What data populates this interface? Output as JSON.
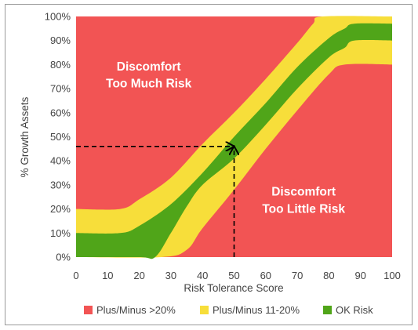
{
  "chart_data": {
    "type": "area",
    "title": "",
    "xlabel": "Risk Tolerance Score",
    "ylabel": "% Growth Assets",
    "xlim": [
      0,
      100
    ],
    "ylim": [
      0,
      100
    ],
    "x_ticks": [
      "0",
      "10",
      "20",
      "30",
      "40",
      "50",
      "60",
      "70",
      "80",
      "90",
      "100"
    ],
    "y_ticks": [
      "0%",
      "10%",
      "20%",
      "30%",
      "40%",
      "50%",
      "60%",
      "70%",
      "80%",
      "90%",
      "100%"
    ],
    "grid": false,
    "legend_position": "bottom",
    "background_zone": {
      "name": "Plus/Minus >20%",
      "color": "#f25454"
    },
    "bands": [
      {
        "name": "Plus/Minus 11-20%",
        "color": "#f7de3a",
        "upper": [
          [
            0,
            20
          ],
          [
            14,
            20
          ],
          [
            20,
            24
          ],
          [
            30,
            33
          ],
          [
            40,
            47
          ],
          [
            50,
            60
          ],
          [
            60,
            74
          ],
          [
            70,
            89
          ],
          [
            75,
            97
          ],
          [
            78,
            100
          ],
          [
            100,
            100
          ]
        ],
        "lower": [
          [
            0,
            0
          ],
          [
            27,
            0
          ],
          [
            35,
            3
          ],
          [
            40,
            12
          ],
          [
            50,
            28
          ],
          [
            60,
            45
          ],
          [
            70,
            61
          ],
          [
            80,
            76
          ],
          [
            85,
            80
          ],
          [
            100,
            80
          ]
        ]
      },
      {
        "name": "OK Risk",
        "color": "#50a519",
        "upper": [
          [
            0,
            10
          ],
          [
            14,
            10
          ],
          [
            20,
            13
          ],
          [
            30,
            22
          ],
          [
            40,
            35
          ],
          [
            50,
            50
          ],
          [
            60,
            64
          ],
          [
            70,
            79
          ],
          [
            80,
            91
          ],
          [
            85,
            95
          ],
          [
            88,
            97
          ],
          [
            100,
            97
          ]
        ],
        "lower": [
          [
            0,
            0
          ],
          [
            20,
            0
          ],
          [
            25,
            0
          ],
          [
            30,
            10
          ],
          [
            35,
            21
          ],
          [
            40,
            30
          ],
          [
            50,
            41
          ],
          [
            60,
            55
          ],
          [
            70,
            70
          ],
          [
            80,
            83
          ],
          [
            85,
            87
          ],
          [
            88,
            90
          ],
          [
            100,
            90
          ]
        ]
      }
    ],
    "annotations": [
      {
        "lines": [
          "Discomfort",
          "Too Much Risk"
        ],
        "x": 23,
        "y": 75
      },
      {
        "lines": [
          "Discomfort",
          "Too Little Risk"
        ],
        "x": 72,
        "y": 23
      }
    ],
    "marker": {
      "x": 50,
      "y": 46,
      "style": "dashed arrows"
    },
    "legend": [
      {
        "label": "Plus/Minus >20%",
        "color": "#f25454"
      },
      {
        "label": "Plus/Minus 11-20%",
        "color": "#f7de3a"
      },
      {
        "label": "OK Risk",
        "color": "#50a519"
      }
    ]
  }
}
